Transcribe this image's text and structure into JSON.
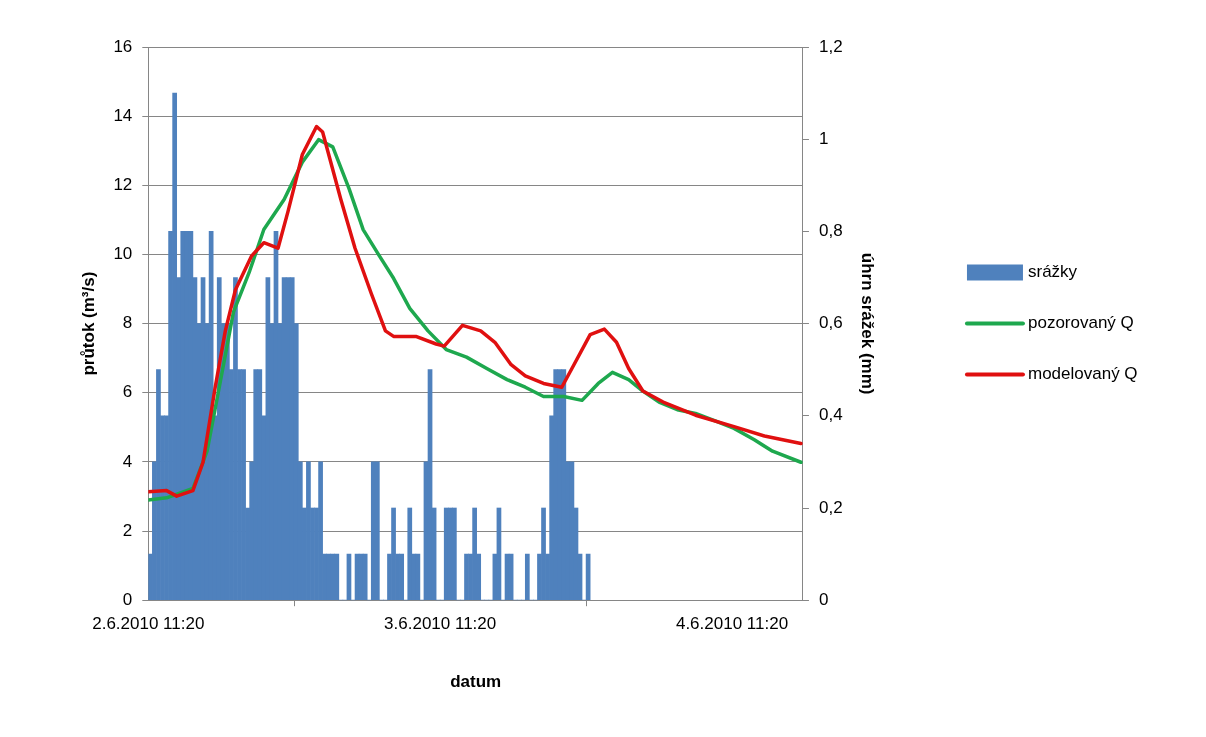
{
  "chart_data": {
    "type": "bar",
    "xlabel": "datum",
    "ylabel": "průtok (m³/s)",
    "y2label": "úhrn srážek (mm)",
    "xlim": [
      "2010-06-02T11:20",
      "2010-06-04T17:10"
    ],
    "xticks": [
      {
        "value": "2010-06-02T11:20",
        "label": "2.6.2010 11:20"
      },
      {
        "value": "2010-06-03T11:20",
        "label": "3.6.2010 11:20"
      },
      {
        "value": "2010-06-04T11:20",
        "label": "4.6.2010 11:20"
      }
    ],
    "ylim": [
      0,
      16
    ],
    "yticks": [
      0,
      2,
      4,
      6,
      8,
      10,
      12,
      14,
      16
    ],
    "y2lim": [
      0,
      1.2
    ],
    "y2ticks": [
      0,
      {
        "value": 0.2,
        "label": "0,2"
      },
      {
        "value": 0.4,
        "label": "0,4"
      },
      {
        "value": 0.6,
        "label": "0,6"
      },
      {
        "value": 0.8,
        "label": "0,8"
      },
      1,
      {
        "value": 1.2,
        "label": "1,2"
      }
    ],
    "grid": "y",
    "legend": "right",
    "marker": "none",
    "series": [
      {
        "name": "srážky",
        "axis": "y2",
        "color": "#4f81bd",
        "x": [
          "2010-06-02T11:30",
          "2010-06-02T11:50",
          "2010-06-02T12:10",
          "2010-06-02T12:30",
          "2010-06-02T12:50",
          "2010-06-02T13:10",
          "2010-06-02T13:30",
          "2010-06-02T13:50",
          "2010-06-02T14:10",
          "2010-06-02T14:30",
          "2010-06-02T14:50",
          "2010-06-02T15:10",
          "2010-06-02T15:30",
          "2010-06-02T15:50",
          "2010-06-02T16:10",
          "2010-06-02T16:30",
          "2010-06-02T16:50",
          "2010-06-02T17:10",
          "2010-06-02T17:30",
          "2010-06-02T17:50",
          "2010-06-02T18:10",
          "2010-06-02T18:30",
          "2010-06-02T18:50",
          "2010-06-02T19:10",
          "2010-06-02T19:30",
          "2010-06-02T19:50",
          "2010-06-02T20:10",
          "2010-06-02T20:30",
          "2010-06-02T20:50",
          "2010-06-02T21:10",
          "2010-06-02T21:30",
          "2010-06-02T21:50",
          "2010-06-02T22:10",
          "2010-06-02T22:30",
          "2010-06-02T22:50",
          "2010-06-02T23:10",
          "2010-06-02T23:30",
          "2010-06-02T23:50",
          "2010-06-03T00:10",
          "2010-06-03T00:30",
          "2010-06-03T00:50",
          "2010-06-03T01:10",
          "2010-06-03T01:30",
          "2010-06-03T01:50",
          "2010-06-03T02:10",
          "2010-06-03T02:30",
          "2010-06-03T02:50",
          "2010-06-03T03:10",
          "2010-06-03T03:30",
          "2010-06-03T03:50",
          "2010-06-03T04:10",
          "2010-06-03T04:30",
          "2010-06-03T04:50",
          "2010-06-03T05:10",
          "2010-06-03T05:30",
          "2010-06-03T05:50",
          "2010-06-03T06:10",
          "2010-06-03T06:30",
          "2010-06-03T06:50",
          "2010-06-03T07:10",
          "2010-06-03T07:30",
          "2010-06-03T07:50",
          "2010-06-03T08:10",
          "2010-06-03T08:30",
          "2010-06-03T08:50",
          "2010-06-03T09:10",
          "2010-06-03T09:30",
          "2010-06-03T09:50",
          "2010-06-03T10:10",
          "2010-06-03T10:30",
          "2010-06-03T10:50",
          "2010-06-03T11:10",
          "2010-06-03T11:30",
          "2010-06-03T11:50",
          "2010-06-03T12:10",
          "2010-06-03T12:30",
          "2010-06-03T12:50",
          "2010-06-03T13:10",
          "2010-06-03T13:30",
          "2010-06-03T13:50",
          "2010-06-03T14:10",
          "2010-06-03T14:30",
          "2010-06-03T14:50",
          "2010-06-03T15:10",
          "2010-06-03T15:30",
          "2010-06-03T15:50",
          "2010-06-03T16:10",
          "2010-06-03T16:30",
          "2010-06-03T16:50",
          "2010-06-03T17:10",
          "2010-06-03T17:30",
          "2010-06-03T17:50",
          "2010-06-03T18:10",
          "2010-06-03T18:30",
          "2010-06-03T18:50",
          "2010-06-03T19:10",
          "2010-06-03T19:30",
          "2010-06-03T19:50",
          "2010-06-03T20:10",
          "2010-06-03T20:30",
          "2010-06-03T20:50",
          "2010-06-03T21:10",
          "2010-06-03T21:30",
          "2010-06-03T21:50",
          "2010-06-03T22:10",
          "2010-06-03T22:30",
          "2010-06-03T22:50",
          "2010-06-03T23:10",
          "2010-06-03T23:30"
        ],
        "values": [
          0.1,
          0.3,
          0.5,
          0.4,
          0.4,
          0.8,
          1.1,
          0.7,
          0.8,
          0.8,
          0.8,
          0.7,
          0.6,
          0.7,
          0.6,
          0.8,
          0.4,
          0.7,
          0.6,
          0.6,
          0.5,
          0.7,
          0.5,
          0.5,
          0.2,
          0.3,
          0.5,
          0.5,
          0.4,
          0.7,
          0.6,
          0.8,
          0.6,
          0.7,
          0.7,
          0.7,
          0.6,
          0.3,
          0.2,
          0.3,
          0.2,
          0.2,
          0.3,
          0.1,
          0.1,
          0.1,
          0.1,
          0,
          0,
          0.1,
          0,
          0.1,
          0.1,
          0.1,
          0,
          0.3,
          0.3,
          0,
          0,
          0.1,
          0.2,
          0.1,
          0.1,
          0,
          0.2,
          0.1,
          0.1,
          0,
          0.3,
          0.5,
          0.2,
          0,
          0,
          0.2,
          0.2,
          0.2,
          0,
          0,
          0.1,
          0.1,
          0.2,
          0.1,
          0,
          0,
          0,
          0.1,
          0.2,
          0,
          0.1,
          0.1,
          0,
          0,
          0,
          0.1,
          0,
          0,
          0.1,
          0.2,
          0.1,
          0.4,
          0.5,
          0.5,
          0.5,
          0.3,
          0.3,
          0.2,
          0.1,
          0,
          0.1
        ]
      },
      {
        "name": "pozorovaný Q",
        "type": "line",
        "color": "#1ea84e",
        "x": [
          "2010-06-02T11:20",
          "2010-06-02T12:50",
          "2010-06-02T15:00",
          "2010-06-02T16:10",
          "2010-06-02T17:10",
          "2010-06-02T18:20",
          "2010-06-02T19:40",
          "2010-06-02T20:50",
          "2010-06-02T22:30",
          "2010-06-03T00:00",
          "2010-06-03T01:20",
          "2010-06-03T02:30",
          "2010-06-03T03:50",
          "2010-06-03T05:00",
          "2010-06-03T06:20",
          "2010-06-03T07:30",
          "2010-06-03T08:50",
          "2010-06-03T10:20",
          "2010-06-03T11:50",
          "2010-06-03T13:30",
          "2010-06-03T15:10",
          "2010-06-03T16:50",
          "2010-06-03T18:20",
          "2010-06-03T19:50",
          "2010-06-03T21:30",
          "2010-06-03T23:00",
          "2010-06-04T00:20",
          "2010-06-04T01:30",
          "2010-06-04T02:50",
          "2010-06-04T04:00",
          "2010-06-04T05:20",
          "2010-06-04T06:50",
          "2010-06-04T08:20",
          "2010-06-04T10:00",
          "2010-06-04T11:30",
          "2010-06-04T13:10",
          "2010-06-04T14:40",
          "2010-06-04T17:00"
        ],
        "values": [
          2.9,
          2.96,
          3.23,
          4.31,
          6.16,
          8.33,
          9.52,
          10.72,
          11.59,
          12.67,
          13.32,
          13.11,
          11.91,
          10.72,
          9.96,
          9.31,
          8.44,
          7.79,
          7.25,
          7.03,
          6.7,
          6.38,
          6.16,
          5.89,
          5.89,
          5.78,
          6.27,
          6.59,
          6.38,
          6.05,
          5.73,
          5.51,
          5.4,
          5.18,
          4.97,
          4.64,
          4.31,
          3.99
        ]
      },
      {
        "name": "modelovaný Q",
        "type": "line",
        "color": "#e01010",
        "x": [
          "2010-06-02T11:20",
          "2010-06-02T12:50",
          "2010-06-02T13:40",
          "2010-06-02T15:00",
          "2010-06-02T15:50",
          "2010-06-02T16:50",
          "2010-06-02T17:40",
          "2010-06-02T18:30",
          "2010-06-02T19:50",
          "2010-06-02T20:50",
          "2010-06-02T22:00",
          "2010-06-02T22:50",
          "2010-06-03T00:00",
          "2010-06-03T01:10",
          "2010-06-03T01:40",
          "2010-06-03T03:10",
          "2010-06-03T04:20",
          "2010-06-03T05:40",
          "2010-06-03T06:50",
          "2010-06-03T07:30",
          "2010-06-03T09:20",
          "2010-06-03T11:00",
          "2010-06-03T11:40",
          "2010-06-03T13:10",
          "2010-06-03T14:40",
          "2010-06-03T15:50",
          "2010-06-03T17:10",
          "2010-06-03T18:20",
          "2010-06-03T19:50",
          "2010-06-03T21:20",
          "2010-06-03T22:20",
          "2010-06-03T23:40",
          "2010-06-04T00:50",
          "2010-06-04T01:50",
          "2010-06-04T02:50",
          "2010-06-04T04:00",
          "2010-06-04T05:40",
          "2010-06-04T08:20",
          "2010-06-04T11:30",
          "2010-06-04T14:00",
          "2010-06-04T17:00"
        ],
        "values": [
          3.14,
          3.17,
          3.01,
          3.17,
          3.99,
          6.16,
          7.79,
          8.98,
          9.96,
          10.34,
          10.18,
          11.26,
          12.89,
          13.7,
          13.54,
          11.59,
          10.18,
          8.87,
          7.79,
          7.63,
          7.63,
          7.41,
          7.35,
          7.95,
          7.79,
          7.46,
          6.81,
          6.49,
          6.27,
          6.16,
          6.81,
          7.68,
          7.84,
          7.46,
          6.7,
          6.05,
          5.73,
          5.35,
          5.02,
          4.75,
          4.53
        ]
      }
    ]
  }
}
